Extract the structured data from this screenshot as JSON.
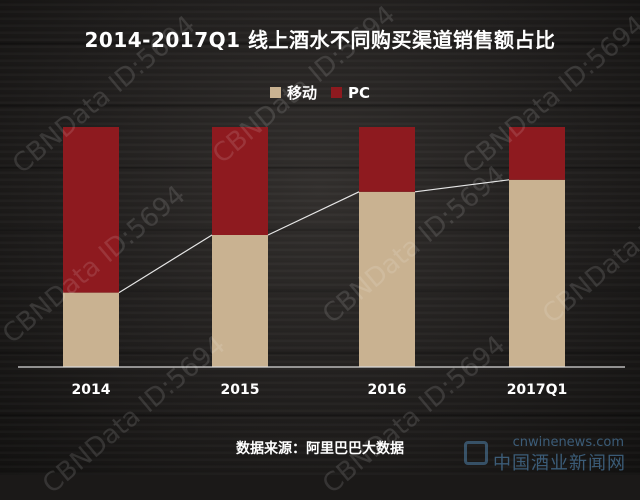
{
  "chart_data": {
    "type": "bar",
    "stacked": true,
    "percent_stacked": true,
    "title": "2014-2017Q1 线上酒水不同购买渠道销售额占比",
    "categories": [
      "2014",
      "2015",
      "2016",
      "2017Q1"
    ],
    "series": [
      {
        "name": "移动",
        "color": "#c9b291",
        "values": [
          31,
          55,
          73,
          78
        ]
      },
      {
        "name": "PC",
        "color": "#8e1a1f",
        "values": [
          69,
          45,
          27,
          22
        ]
      }
    ],
    "trend_line_on": "移动",
    "ylim": [
      0,
      100
    ],
    "legend_position": "top-center",
    "grid": false,
    "source": "数据来源：阿里巴巴大数据"
  },
  "watermark": "CBNData ID:5694",
  "site_logo": {
    "url": "cnwinenews.com",
    "name": "中国酒业新闻网"
  }
}
